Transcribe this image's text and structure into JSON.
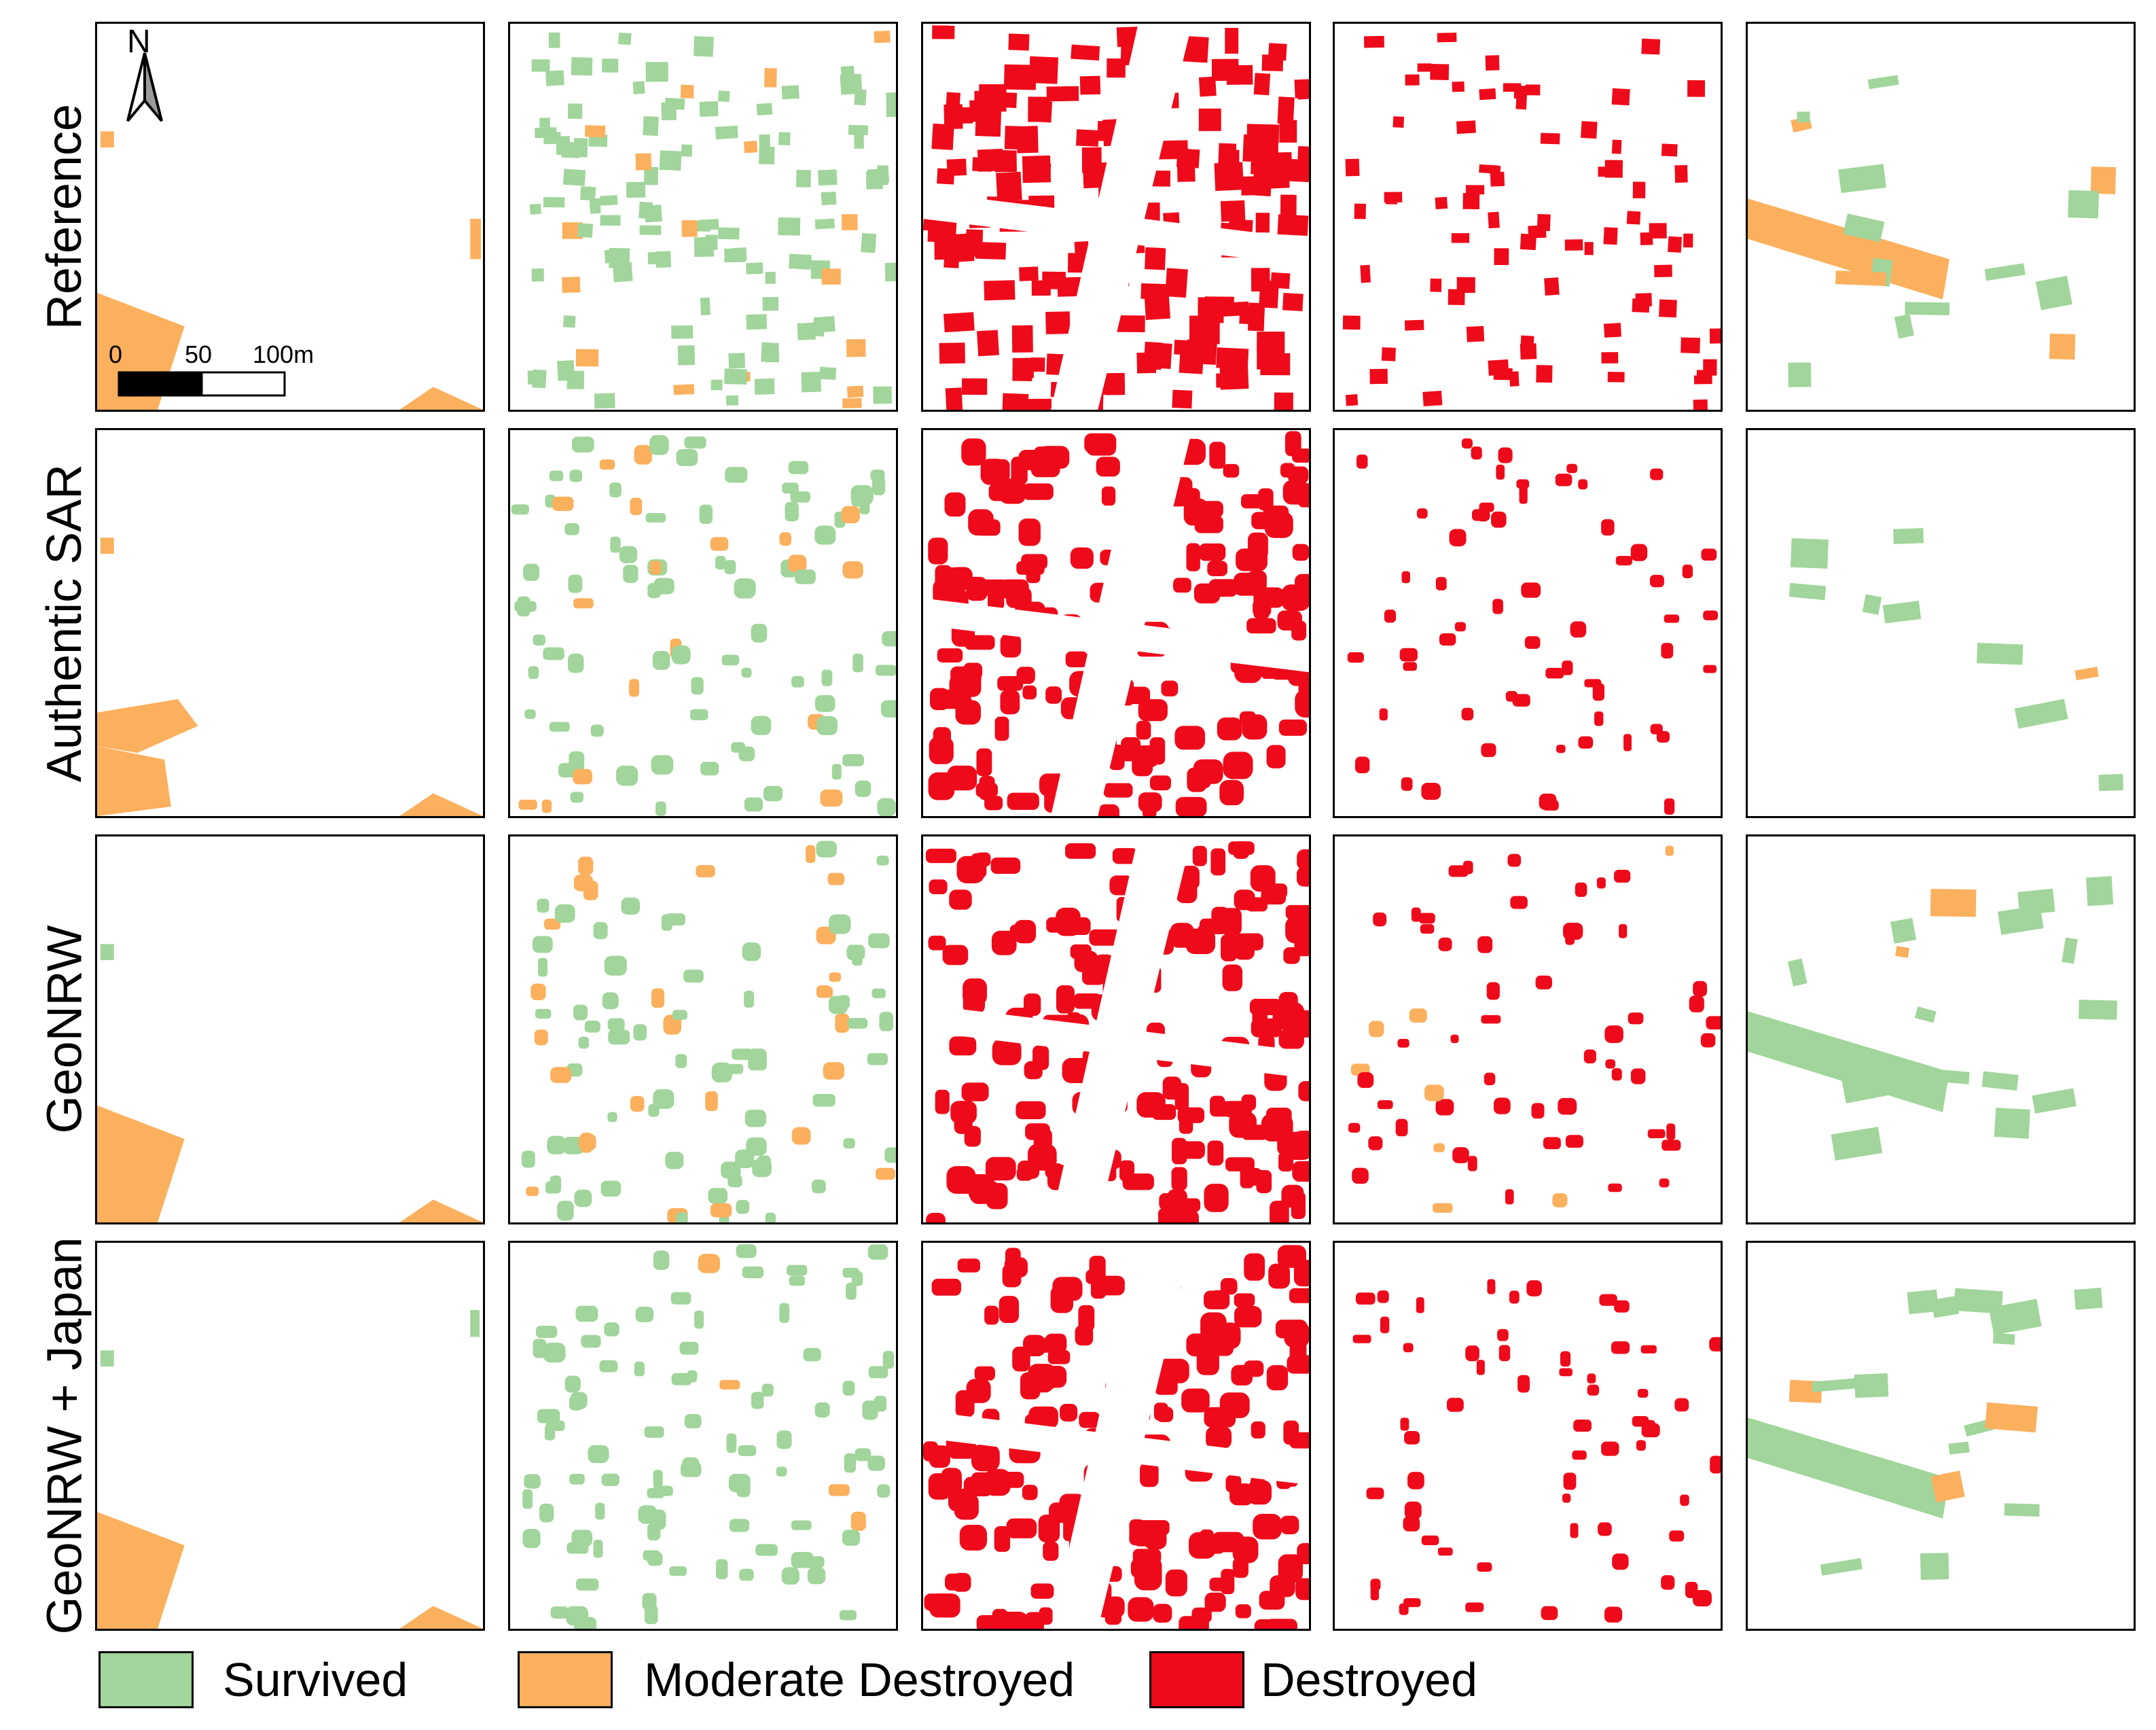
{
  "rows": [
    {
      "key": "reference",
      "label": "Reference"
    },
    {
      "key": "authentic",
      "label": "Authentic SAR"
    },
    {
      "key": "geonrw",
      "label": "GeoNRW"
    },
    {
      "key": "geonrw_japan",
      "label": "GeoNRW + Japan"
    }
  ],
  "north_arrow": {
    "letter": "N"
  },
  "scale_bar": {
    "labels": [
      "0",
      "50",
      "100m"
    ]
  },
  "legend": [
    {
      "label": "Survived",
      "color": "#a1d59b",
      "icon": "survived-swatch"
    },
    {
      "label": "Moderate Destroyed",
      "color": "#fbb05e",
      "icon": "moderate-destroyed-swatch"
    },
    {
      "label": "Destroyed",
      "color": "#ee0a1a",
      "icon": "destroyed-swatch"
    }
  ],
  "colors": {
    "survived": "#a1d59b",
    "moderate": "#fbb05e",
    "destroyed": "#ee0a1a",
    "border": "#000000"
  }
}
